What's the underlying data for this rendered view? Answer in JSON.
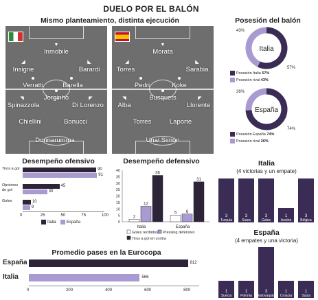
{
  "header": {
    "title": "DUELO POR EL BALÓN"
  },
  "lineups": {
    "subtitle": "Mismo planteamiento, distinta ejecución",
    "italy": {
      "team": "Italia",
      "players": {
        "fw": "Inmobile",
        "lw": "Insigne",
        "rw": "Barardi",
        "lm": "Verratti",
        "rm": "Barella",
        "dm": "Jorginho",
        "lb": "Spinazzola",
        "rb": "Di Lorenzo",
        "cb1": "Chiellini",
        "cb2": "Bonucci",
        "gk": "Donnarumma"
      }
    },
    "spain": {
      "team": "España",
      "players": {
        "fw": "Morata",
        "lw": "Torres",
        "rw": "Sarabia",
        "lm": "Pedri",
        "rm": "Koke",
        "dm": "Busquets",
        "lb": "Alba",
        "rb": "Llorente",
        "cb1": "Torres",
        "cb2": "Laporte",
        "gk": "Unai Simón"
      }
    }
  },
  "possession": {
    "title": "Posesión del balón",
    "colors": {
      "dark": "#3a2c55",
      "light": "#a99bd1"
    },
    "italy": {
      "team": "Italia",
      "own": 57,
      "rival": 43,
      "own_label": "57%",
      "rival_label": "43%",
      "legend_own": "Posesión Italia",
      "legend_rival": "Posesión rival",
      "legend_own_value": "57%",
      "legend_rival_value": "43%"
    },
    "spain": {
      "team": "España",
      "own": 74,
      "rival": 26,
      "own_label": "74%",
      "rival_label": "26%",
      "legend_own": "Posesión España",
      "legend_rival": "Posesión rival",
      "legend_own_value": "74%",
      "legend_rival_value": "26%"
    }
  },
  "chart_data": [
    {
      "type": "bar",
      "title": "Desempeño ofensivo",
      "orientation": "horizontal",
      "categories": [
        "Tiros a gol",
        "Opciones de gol",
        "Goles"
      ],
      "series": [
        {
          "name": "Italia",
          "values": [
            90,
            45,
            10
          ],
          "color": "#2d2438"
        },
        {
          "name": "España",
          "values": [
            91,
            30,
            9
          ],
          "color": "#a99bd1"
        }
      ],
      "xlim": [
        0,
        100
      ],
      "ticks": [
        "0",
        "25",
        "50",
        "75",
        "100"
      ]
    },
    {
      "type": "bar",
      "title": "Desempeño defensivo",
      "categories": [
        "Italia",
        "España"
      ],
      "series": [
        {
          "name": "Goles recibidos",
          "values": [
            2,
            5
          ],
          "color": "#ffffff"
        },
        {
          "name": "Pressing defensivo",
          "values": [
            12,
            6
          ],
          "color": "#a99bd1"
        },
        {
          "name": "Tiros a gol en contra",
          "values": [
            36,
            31
          ],
          "color": "#2d2438"
        }
      ],
      "ylim": [
        0,
        40
      ],
      "ticks": [
        "0",
        "5",
        "10",
        "15",
        "20",
        "25",
        "30",
        "35",
        "40"
      ]
    },
    {
      "type": "bar",
      "title": "Promedio pases en la Eurocopa",
      "orientation": "horizontal",
      "categories": [
        "España",
        "Italia"
      ],
      "values": [
        812,
        566
      ],
      "colors": [
        "#2d2438",
        "#a99bd1"
      ],
      "xlim": [
        0,
        800
      ],
      "ticks": [
        "0",
        "200",
        "400",
        "600",
        "800"
      ]
    },
    {
      "type": "bar",
      "title": "Italia",
      "subtitle": "(4 victorias y un empate)",
      "categories": [
        "Turquía",
        "Suiza",
        "Gales",
        "Austria",
        "Bélgica"
      ],
      "values": [
        3,
        3,
        3,
        1,
        3
      ],
      "color": "#3a2c55"
    },
    {
      "type": "bar",
      "title": "España",
      "subtitle": "(4 empates y una victoria)",
      "categories": [
        "Suecia",
        "Polonia",
        "Eslovaquia",
        "Croacia",
        "Suiza"
      ],
      "values": [
        1,
        1,
        3,
        1,
        1
      ],
      "color": "#3a2c55"
    }
  ]
}
